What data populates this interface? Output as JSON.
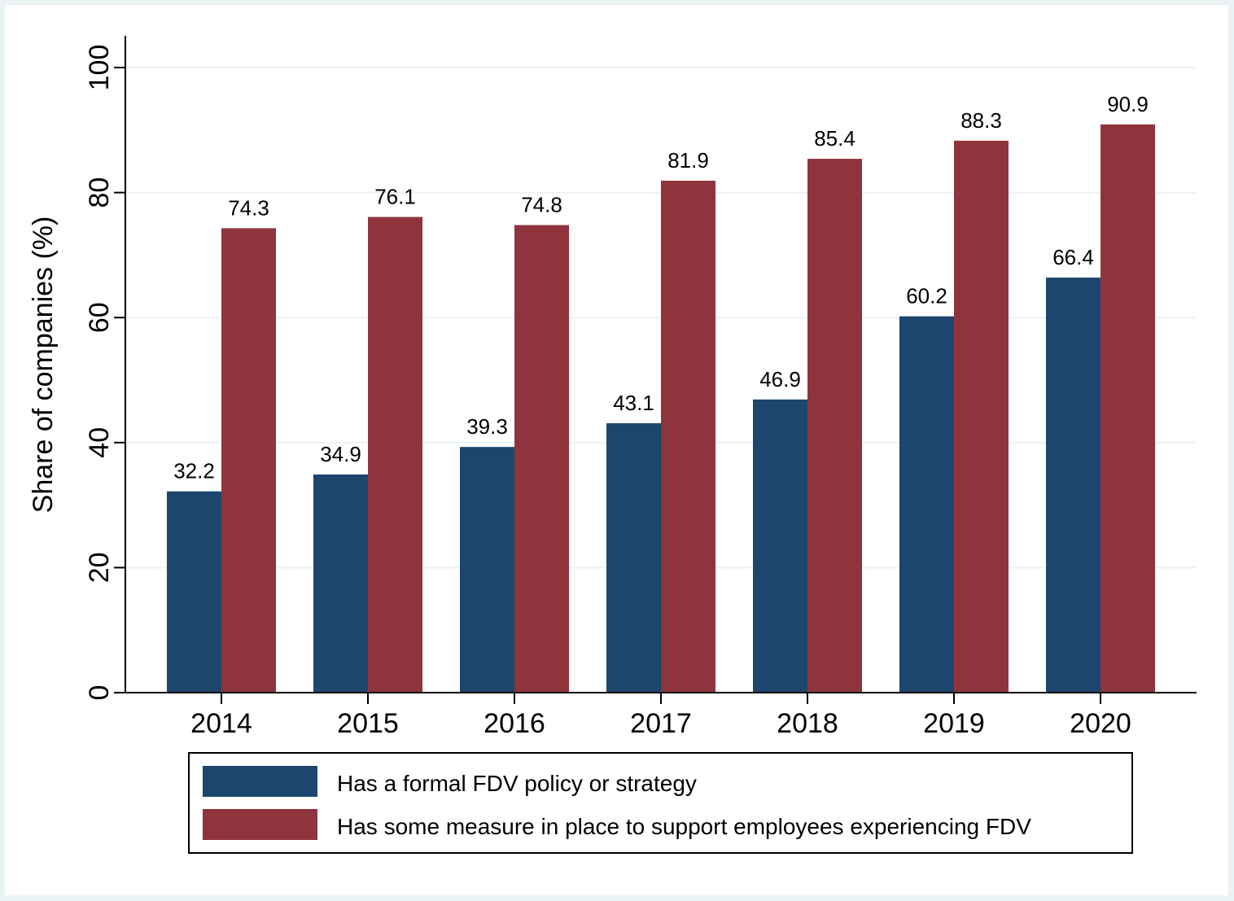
{
  "chart_data": {
    "type": "bar",
    "ylabel": "Share of companies (%)",
    "xlabel": "",
    "ylim": [
      0,
      100
    ],
    "yticks": [
      0,
      20,
      40,
      60,
      80,
      100
    ],
    "grid": true,
    "legend_position": "bottom",
    "categories": [
      "2014",
      "2015",
      "2016",
      "2017",
      "2018",
      "2019",
      "2020"
    ],
    "series": [
      {
        "name": "Has a formal FDV policy or strategy",
        "color": "#1c466e",
        "values": [
          32.2,
          34.9,
          39.3,
          43.1,
          46.9,
          60.2,
          66.4
        ],
        "labels": [
          "32.2",
          "34.9",
          "39.3",
          "43.1",
          "46.9",
          "60.2",
          "66.4"
        ]
      },
      {
        "name": "Has some measure in place to support employees experiencing FDV",
        "color": "#8f343d",
        "values": [
          74.3,
          76.1,
          74.8,
          81.9,
          85.4,
          88.3,
          90.9
        ],
        "labels": [
          "74.3",
          "76.1",
          "74.8",
          "81.9",
          "85.4",
          "88.3",
          "90.9"
        ]
      }
    ]
  }
}
